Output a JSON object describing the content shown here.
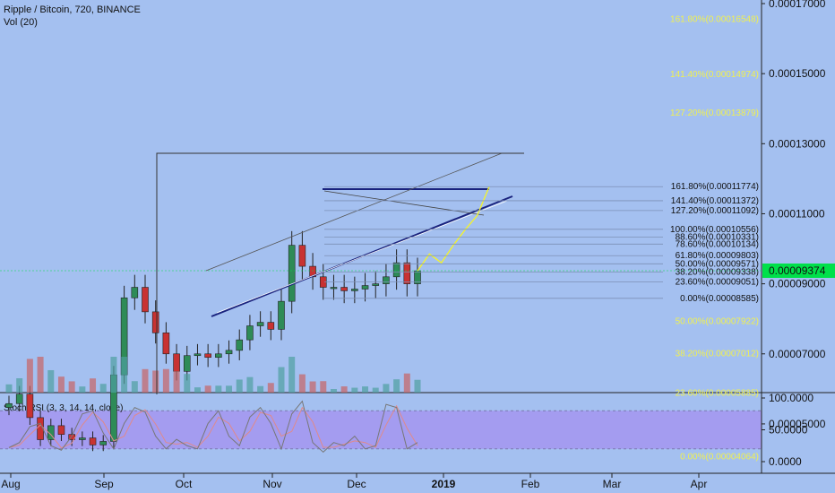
{
  "header": {
    "title": "Ripple / Bitcoin, 720, BINANCE",
    "volume_label": "Vol (20)"
  },
  "indicator": {
    "label": "Stoch RSI (3, 3, 14, 14, close)",
    "upper_band": 80,
    "lower_band": 20,
    "ticks": [
      "100.0000",
      "50.0000",
      "0.0000"
    ]
  },
  "price_axis": {
    "ticks": [
      "0.00017000",
      "0.00015000",
      "0.00013000",
      "0.00011000",
      "0.00009000",
      "0.00007000",
      "0.00005000"
    ],
    "current_price": "0.00009374"
  },
  "time_axis": {
    "labels": [
      "Aug",
      "Sep",
      "Oct",
      "Nov",
      "Dec",
      "2019",
      "Feb",
      "Mar",
      "Apr"
    ]
  },
  "fib_large": [
    "161.80%(0.00016548)",
    "141.40%(0.00014974)",
    "127.20%(0.00013879)",
    "50.00%(0.00007922)",
    "38.20%(0.00007012)",
    "23.60%(0.00005885)",
    "0.00%(0.00004064)"
  ],
  "fib_small": [
    "161.80%(0.00011774)",
    "141.40%(0.00011372)",
    "127.20%(0.00011092)",
    "100.00%(0.00010556)",
    "88.60%(0.00010331)",
    "78.60%(0.00010134)",
    "61.80%(0.00009803)",
    "50.00%(0.00009571)",
    "38.20%(0.00009338)",
    "23.60%(0.00009051)",
    "0.00%(0.00008585)"
  ],
  "colors": {
    "background": "#a4c0f0",
    "bull": "#2e8b57",
    "bear": "#c83232",
    "fib_label": "#f0f050",
    "price_tag": "#00e04a",
    "stoch_band": "#a49cf0",
    "trendline": "#1a237e"
  },
  "chart_data": {
    "type": "candlestick",
    "approximate": true,
    "y_unit": "BTC",
    "x": [
      "Aug",
      "Aug",
      "Aug",
      "Aug",
      "Aug",
      "Aug",
      "Aug",
      "Aug",
      "Sep",
      "Sep",
      "Sep",
      "Sep",
      "Sep",
      "Sep",
      "Sep",
      "Sep",
      "Oct",
      "Oct",
      "Oct",
      "Oct",
      "Oct",
      "Oct",
      "Oct",
      "Oct",
      "Nov",
      "Nov",
      "Nov",
      "Nov",
      "Nov",
      "Nov",
      "Nov",
      "Nov",
      "Dec",
      "Dec",
      "Dec",
      "Dec",
      "Dec",
      "Dec",
      "Dec",
      "Dec"
    ],
    "close": [
      5.58e-05,
      5.85e-05,
      5.18e-05,
      4.55e-05,
      4.95e-05,
      4.7e-05,
      4.55e-05,
      4.6e-05,
      4.4e-05,
      4.5e-05,
      6.4e-05,
      8.6e-05,
      8.9e-05,
      8.2e-05,
      7.6e-05,
      7e-05,
      6.5e-05,
      6.95e-05,
      7e-05,
      6.9e-05,
      7e-05,
      7.1e-05,
      7.4e-05,
      7.8e-05,
      7.9e-05,
      7.7e-05,
      8.5e-05,
      0.000101,
      9.5e-05,
      9.2e-05,
      8.9e-05,
      8.9e-05,
      8.8e-05,
      8.85e-05,
      8.95e-05,
      9e-05,
      9.2e-05,
      9.6e-05,
      9e-05,
      9.37e-05
    ],
    "stoch_rsi": [
      22,
      30,
      55,
      60,
      25,
      18,
      40,
      75,
      80,
      45,
      20,
      60,
      85,
      78,
      40,
      20,
      35,
      25,
      20,
      60,
      80,
      40,
      25,
      70,
      85,
      60,
      20,
      75,
      95,
      30,
      15,
      30,
      25,
      40,
      20,
      25,
      90,
      85,
      20,
      30
    ],
    "projection": [
      9.37e-05,
      9.85e-05,
      9.6e-05,
      0.000101,
      0.0001055,
      0.0001095,
      0.0001177
    ]
  }
}
